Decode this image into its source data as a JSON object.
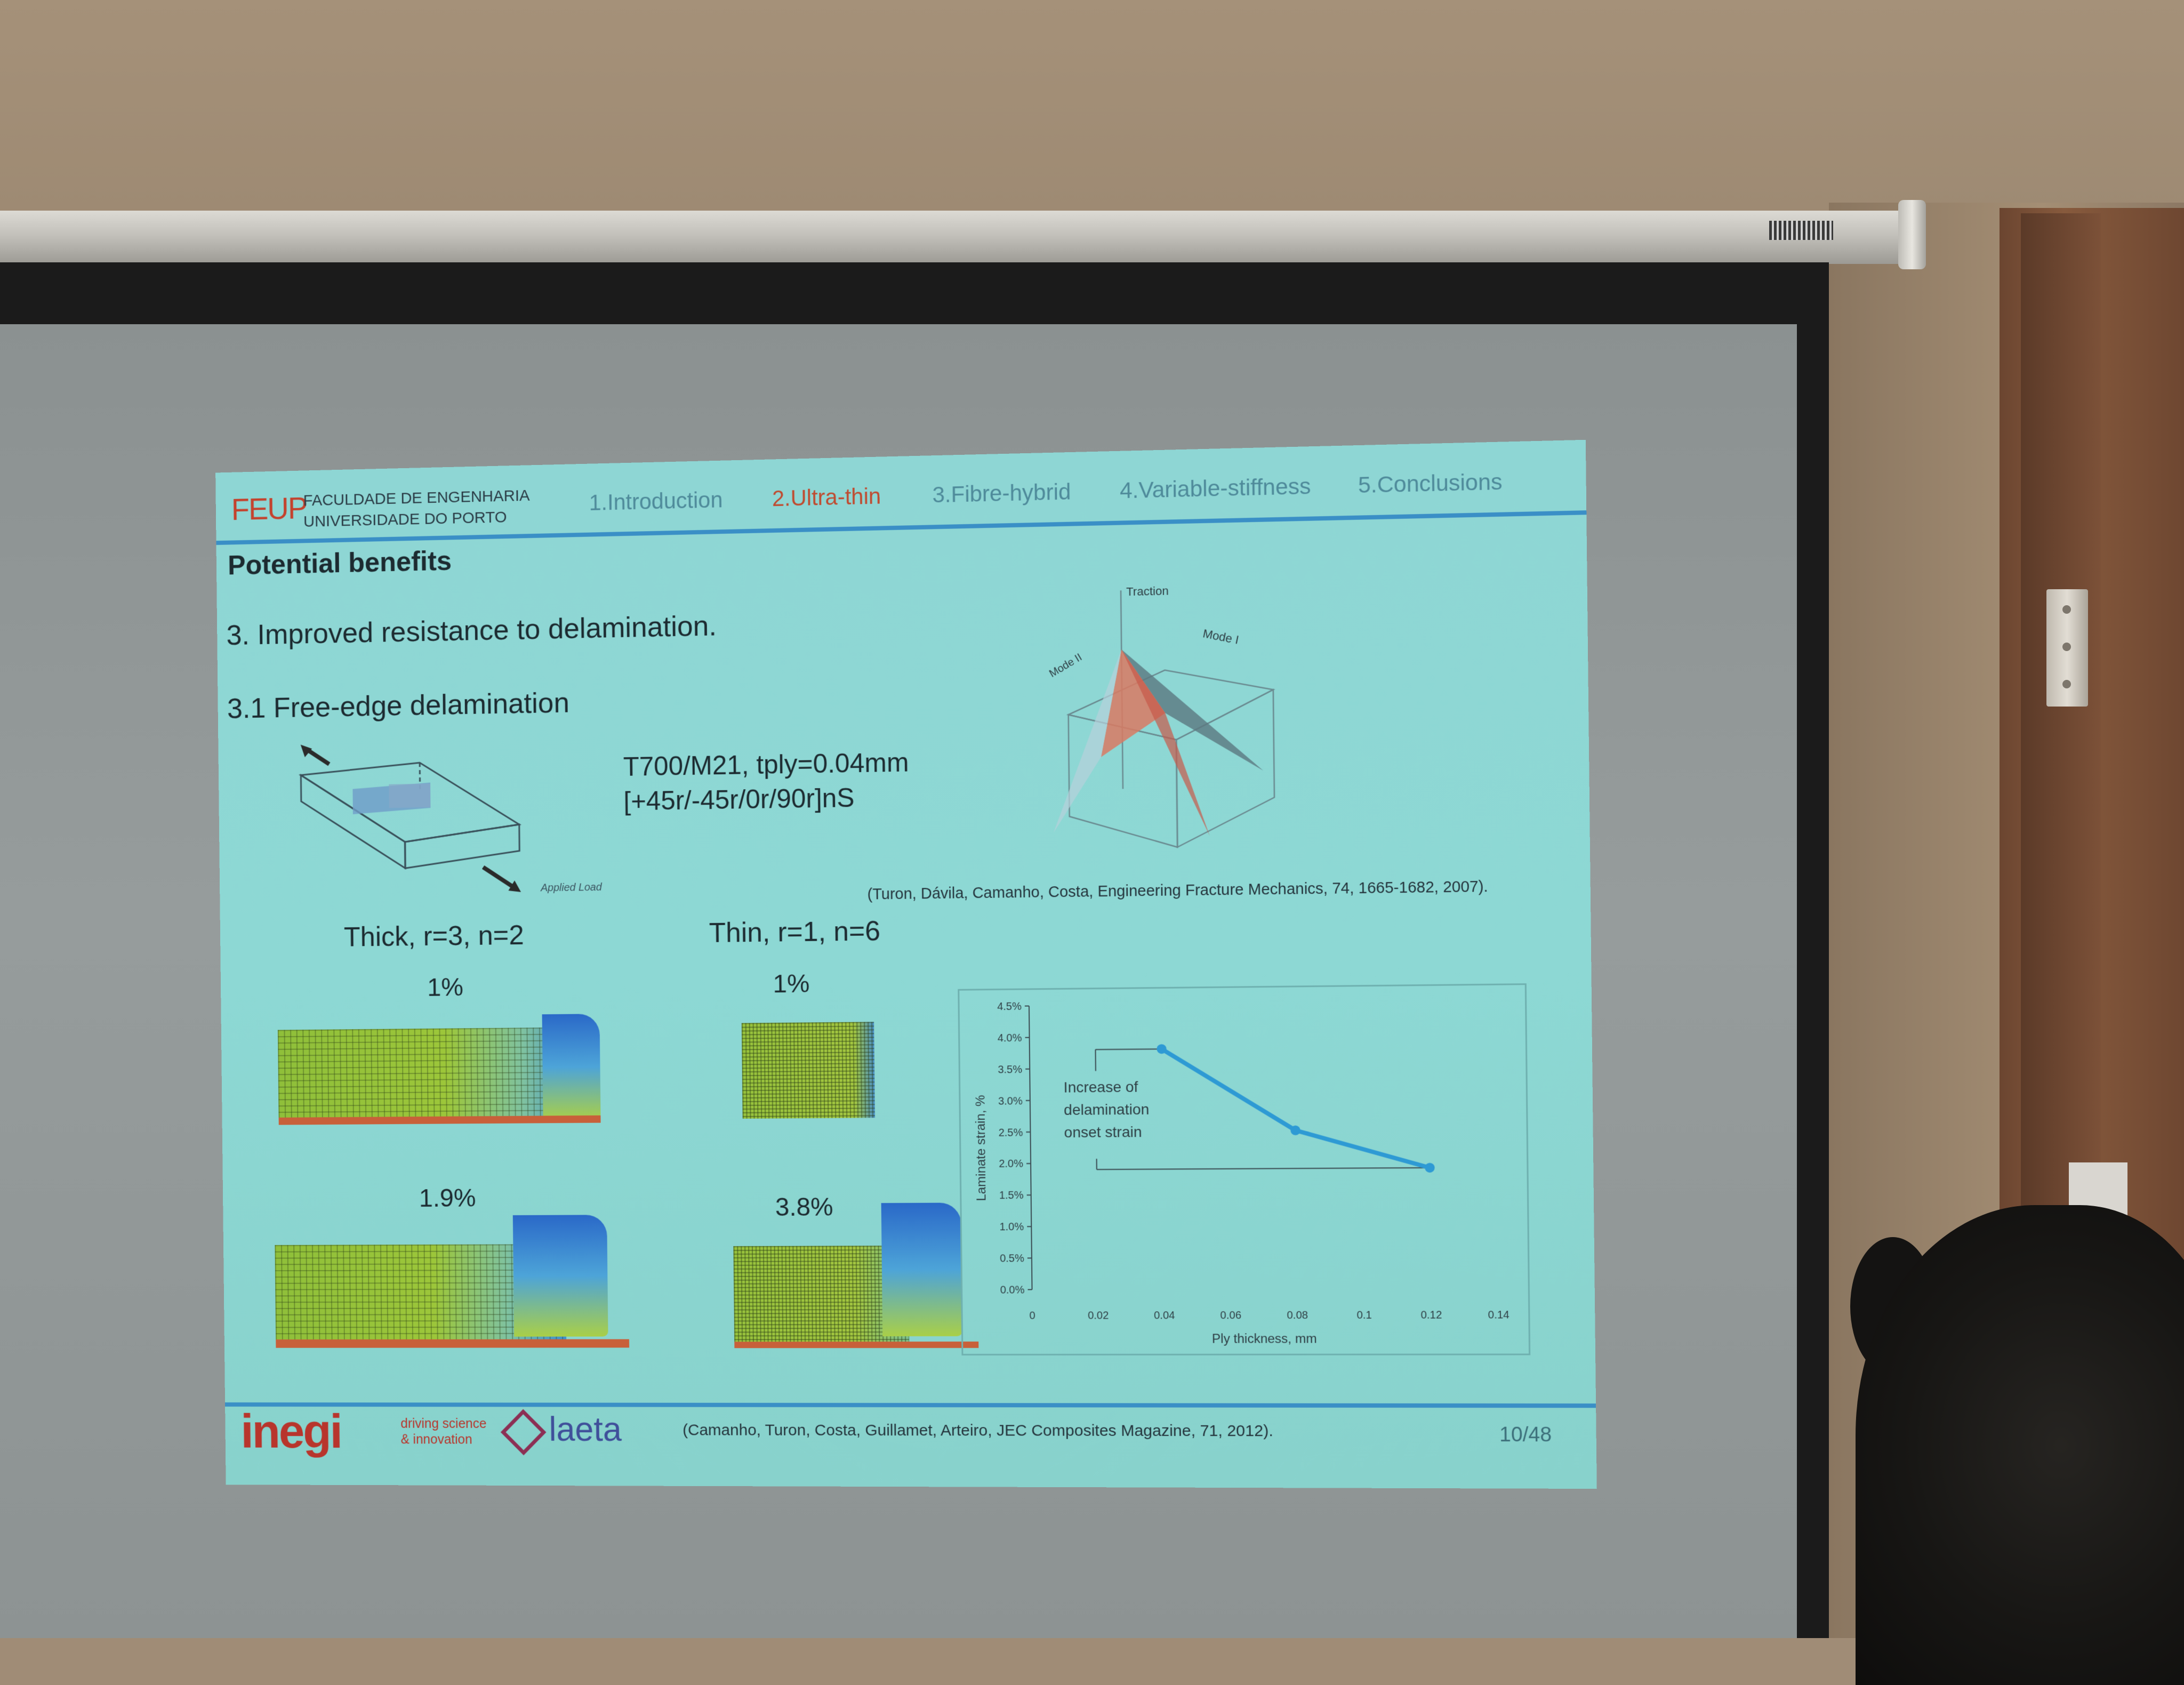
{
  "nav": {
    "institution_abbr": "FEUP",
    "institution_line1": "FACULDADE DE ENGENHARIA",
    "institution_line2": "UNIVERSIDADE DO PORTO",
    "items": [
      {
        "label": "1.Introduction",
        "active": false
      },
      {
        "label": "2.Ultra-thin",
        "active": true
      },
      {
        "label": "3.Fibre-hybrid",
        "active": false
      },
      {
        "label": "4.Variable-stiffness",
        "active": false
      },
      {
        "label": "5.Conclusions",
        "active": false
      }
    ]
  },
  "slide": {
    "subtitle": "Potential benefits",
    "point": "3. Improved resistance to delamination.",
    "subpoint": "3.1 Free-edge delamination",
    "spec_line1": "T700/M21, tply=0.04mm",
    "spec_line2": "[+45r/-45r/0r/90r]nS",
    "applied_load": "Applied Load",
    "reference_top": "(Turon, Dávila, Camanho, Costa, Engineering Fracture Mechanics, 74, 1665-1682, 2007).",
    "cohesive_labels": {
      "traction": "Traction",
      "mode_i": "Mode I",
      "mode_ii": "Mode II"
    },
    "thick_caption": "Thick, r=3, n=2",
    "thin_caption": "Thin, r=1, n=6",
    "thick_strain_1": "1%",
    "thick_strain_2": "1.9%",
    "thin_strain_1": "1%",
    "thin_strain_2": "3.8%",
    "footer_reference": "(Camanho, Turon, Costa, Guillamet, Arteiro, JEC Composites Magazine, 71, 2012).",
    "page_number": "10/48",
    "logo_inegi": "inegi",
    "logo_inegi_tag1": "driving science",
    "logo_inegi_tag2": "& innovation",
    "logo_laeta": "laeta"
  },
  "colors": {
    "slide_bg": "#8dd8d4",
    "accent_red": "#c04a2f",
    "rule_blue": "#3a8fc6",
    "curve_blue": "#2e9ad4"
  },
  "chart_data": {
    "type": "line",
    "xlabel": "Ply thickness, mm",
    "ylabel": "Laminate strain, %",
    "xlim": [
      0,
      0.14
    ],
    "ylim": [
      0,
      4.5
    ],
    "x_ticks": [
      "0",
      "0.02",
      "0.04",
      "0.06",
      "0.08",
      "0.1",
      "0.12",
      "0.14"
    ],
    "y_ticks": [
      "0.0%",
      "0.5%",
      "1.0%",
      "1.5%",
      "2.0%",
      "2.5%",
      "3.0%",
      "3.5%",
      "4.0%",
      "4.5%"
    ],
    "annotation": [
      "Increase of",
      "delamination",
      "onset strain"
    ],
    "series": [
      {
        "x": [
          0.04,
          0.08,
          0.12
        ],
        "y": [
          3.8,
          2.5,
          1.9
        ]
      }
    ],
    "reference_lines": {
      "upper": 3.8,
      "lower": 1.9,
      "x_start": 0.02
    }
  }
}
